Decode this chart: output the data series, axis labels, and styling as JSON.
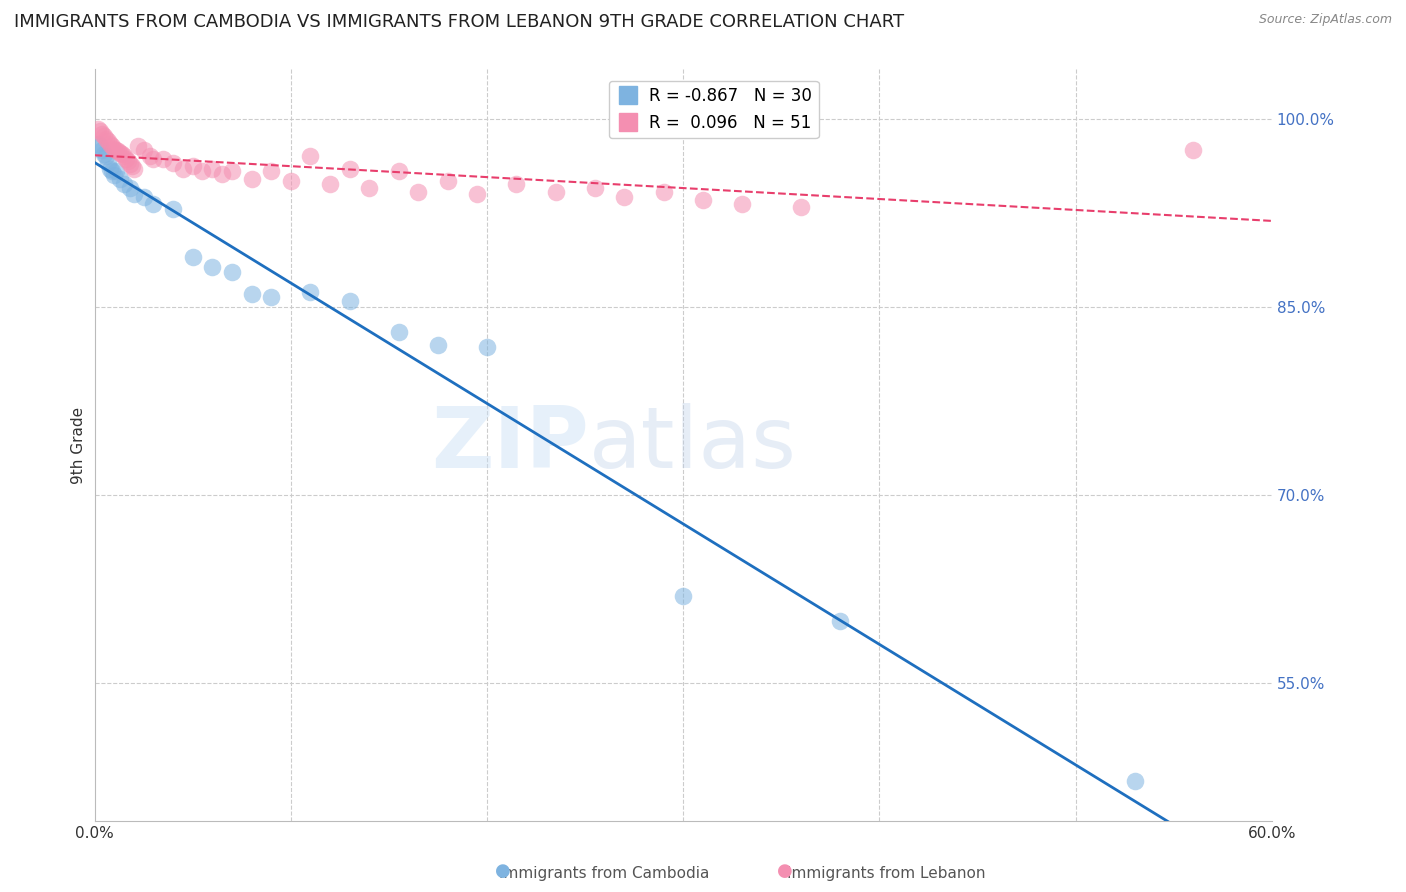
{
  "title": "IMMIGRANTS FROM CAMBODIA VS IMMIGRANTS FROM LEBANON 9TH GRADE CORRELATION CHART",
  "source": "Source: ZipAtlas.com",
  "ylabel_label": "9th Grade",
  "legend_cambodia": "Immigrants from Cambodia",
  "legend_lebanon": "Immigrants from Lebanon",
  "R_cambodia": -0.867,
  "N_cambodia": 30,
  "R_lebanon": 0.096,
  "N_lebanon": 51,
  "xlim": [
    0.0,
    0.6
  ],
  "ylim": [
    0.44,
    1.04
  ],
  "color_cambodia": "#7EB3E0",
  "color_lebanon": "#F48FB1",
  "trend_color_cambodia": "#1E6FBF",
  "trend_color_lebanon": "#E83E6C",
  "background_color": "#ffffff",
  "grid_color": "#cccccc",
  "right_axis_color": "#4472C4",
  "scatter_cambodia_x": [
    0.002,
    0.003,
    0.004,
    0.005,
    0.006,
    0.007,
    0.008,
    0.009,
    0.01,
    0.011,
    0.013,
    0.015,
    0.018,
    0.02,
    0.025,
    0.03,
    0.04,
    0.05,
    0.06,
    0.07,
    0.08,
    0.09,
    0.11,
    0.13,
    0.155,
    0.175,
    0.2,
    0.3,
    0.38,
    0.53
  ],
  "scatter_cambodia_y": [
    0.98,
    0.978,
    0.975,
    0.972,
    0.97,
    0.965,
    0.96,
    0.958,
    0.955,
    0.958,
    0.952,
    0.948,
    0.945,
    0.94,
    0.938,
    0.932,
    0.928,
    0.89,
    0.882,
    0.878,
    0.86,
    0.858,
    0.862,
    0.855,
    0.83,
    0.82,
    0.818,
    0.62,
    0.6,
    0.472
  ],
  "scatter_lebanon_x": [
    0.002,
    0.003,
    0.004,
    0.005,
    0.006,
    0.007,
    0.008,
    0.009,
    0.01,
    0.011,
    0.012,
    0.013,
    0.014,
    0.015,
    0.016,
    0.017,
    0.018,
    0.019,
    0.02,
    0.022,
    0.025,
    0.028,
    0.03,
    0.035,
    0.04,
    0.045,
    0.05,
    0.055,
    0.06,
    0.065,
    0.07,
    0.08,
    0.09,
    0.1,
    0.11,
    0.12,
    0.13,
    0.14,
    0.155,
    0.165,
    0.18,
    0.195,
    0.215,
    0.235,
    0.255,
    0.27,
    0.29,
    0.31,
    0.33,
    0.36,
    0.56
  ],
  "scatter_lebanon_y": [
    0.992,
    0.99,
    0.988,
    0.986,
    0.984,
    0.982,
    0.98,
    0.978,
    0.976,
    0.975,
    0.974,
    0.973,
    0.972,
    0.97,
    0.968,
    0.966,
    0.964,
    0.962,
    0.96,
    0.978,
    0.975,
    0.97,
    0.968,
    0.968,
    0.965,
    0.96,
    0.962,
    0.958,
    0.96,
    0.956,
    0.958,
    0.952,
    0.958,
    0.95,
    0.97,
    0.948,
    0.96,
    0.945,
    0.958,
    0.942,
    0.95,
    0.94,
    0.948,
    0.942,
    0.945,
    0.938,
    0.942,
    0.935,
    0.932,
    0.93,
    0.975
  ],
  "watermark_text": "ZIPatlas",
  "title_fontsize": 13,
  "axis_label_fontsize": 11,
  "tick_fontsize": 11,
  "legend_fontsize": 12
}
